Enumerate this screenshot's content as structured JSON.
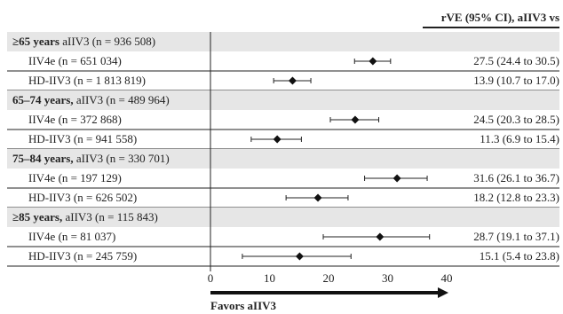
{
  "chart_data": {
    "type": "forest",
    "column_header": "rVE (95% CI), aIIV3 vs",
    "xlim": [
      0,
      40
    ],
    "x_ticks": [
      "0",
      "10",
      "20",
      "30",
      "40"
    ],
    "xlabel": "Favors aIIV3",
    "groups": [
      {
        "label_bold": "≥65 years",
        "label_rest": " aIIV3 (n = 936 508)",
        "rows": [
          {
            "label": "IIV4e (n = 651 034)",
            "estimate": 27.5,
            "lower": 24.4,
            "upper": 30.5,
            "value_text": "27.5 (24.4 to 30.5)"
          },
          {
            "label": "HD-IIV3 (n = 1 813 819)",
            "estimate": 13.9,
            "lower": 10.7,
            "upper": 17.0,
            "value_text": "13.9 (10.7 to 17.0)"
          }
        ]
      },
      {
        "label_bold": "65–74 years,",
        "label_rest": " aIIV3 (n = 489 964)",
        "rows": [
          {
            "label": "IIV4e (n = 372 868)",
            "estimate": 24.5,
            "lower": 20.3,
            "upper": 28.5,
            "value_text": "24.5 (20.3 to 28.5)"
          },
          {
            "label": "HD-IIV3 (n = 941 558)",
            "estimate": 11.3,
            "lower": 6.9,
            "upper": 15.4,
            "value_text": "11.3 (6.9 to 15.4)"
          }
        ]
      },
      {
        "label_bold": "75–84 years,",
        "label_rest": " aIIV3 (n = 330 701)",
        "rows": [
          {
            "label": "IIV4e (n = 197 129)",
            "estimate": 31.6,
            "lower": 26.1,
            "upper": 36.7,
            "value_text": "31.6 (26.1 to 36.7)"
          },
          {
            "label": "HD-IIV3 (n = 626 502)",
            "estimate": 18.2,
            "lower": 12.8,
            "upper": 23.3,
            "value_text": "18.2 (12.8 to 23.3)"
          }
        ]
      },
      {
        "label_bold": "≥85 years,",
        "label_rest": " aIIV3 (n = 115 843)",
        "rows": [
          {
            "label": "IIV4e (n = 81 037)",
            "estimate": 28.7,
            "lower": 19.1,
            "upper": 37.1,
            "value_text": "28.7 (19.1 to 37.1)"
          },
          {
            "label": "HD-IIV3 (n = 245 759)",
            "estimate": 15.1,
            "lower": 5.4,
            "upper": 23.8,
            "value_text": "15.1 (5.4 to 23.8)"
          }
        ]
      }
    ],
    "colors": {
      "group_band": "#e6e6e6",
      "line": "#222222",
      "marker": "#111111"
    }
  }
}
